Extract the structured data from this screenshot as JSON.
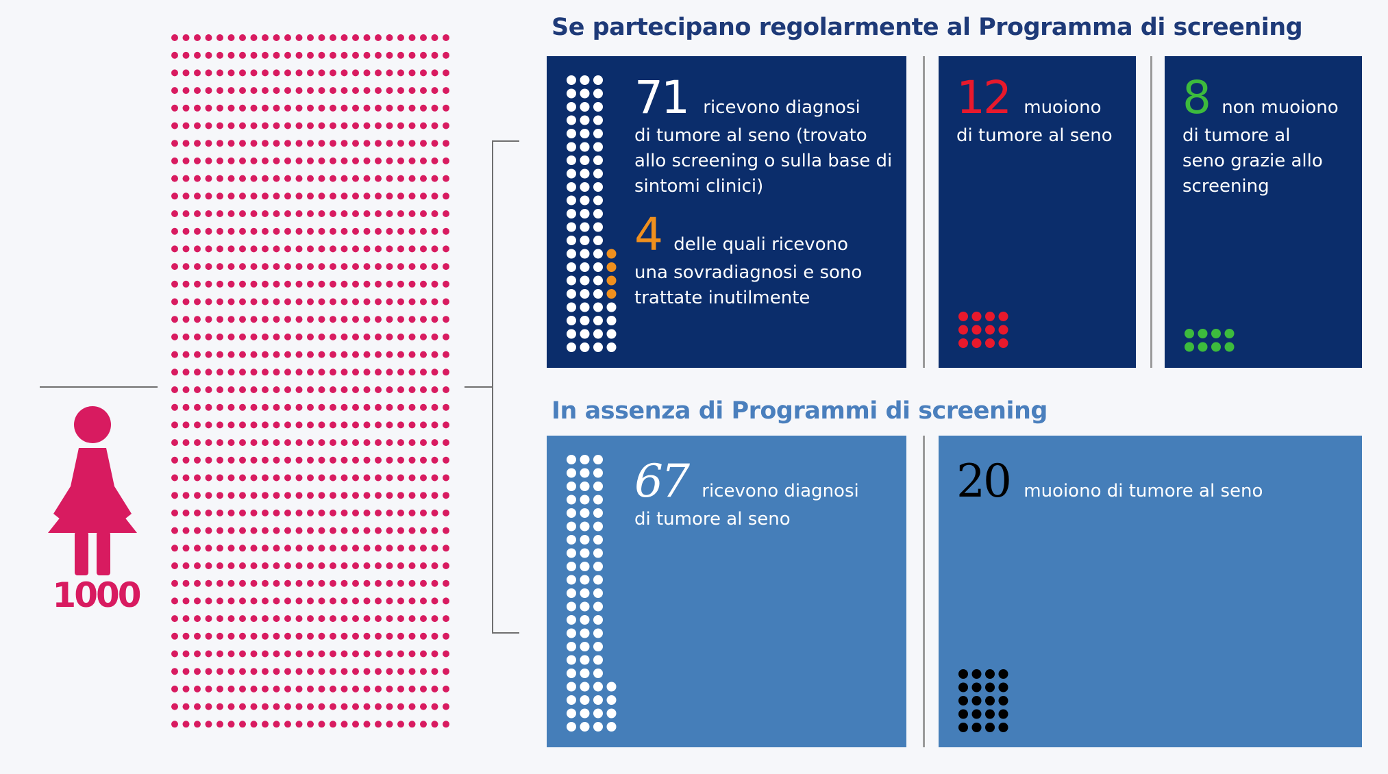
{
  "population": {
    "count_label": "1000",
    "count": 1000,
    "grid_columns": 40,
    "grid_rows": 25,
    "color": "#d81b60",
    "icon": "woman-icon"
  },
  "screening_section": {
    "title": "Se partecipano regolarmente al Programma di screening",
    "diagnosed": {
      "number": "71",
      "count": 71,
      "text_line1": "ricevono diagnosi",
      "text_rest": "di tumore al seno (trovato allo screening o sulla base di sintomi clinici)",
      "overdiagnosed": {
        "number": "4",
        "count": 4,
        "text_line1": "delle quali ricevono",
        "text_rest": "una sovradiagnosi e sono trattate inutilmente",
        "color": "#f0901e"
      }
    },
    "deaths": {
      "number": "12",
      "count": 12,
      "text_line1": "muoiono",
      "text_rest": "di tumore al seno",
      "color": "#e8192c"
    },
    "saved": {
      "number": "8",
      "count": 8,
      "text_line1": "non muoiono",
      "text_rest": "di tumore al seno grazie allo screening",
      "color": "#3dbb3d"
    }
  },
  "no_screening_section": {
    "title": "In assenza di Programmi di screening",
    "diagnosed": {
      "number": "67",
      "count": 67,
      "text_line1": "ricevono diagnosi",
      "text_rest": "di tumore al seno"
    },
    "deaths": {
      "number": "20",
      "count": 20,
      "text_line1": "muoiono di tumore al seno",
      "color": "#000000"
    }
  },
  "colors": {
    "dark_panel": "#0b2d6b",
    "light_panel": "#457eb9",
    "title_dark": "#1e3a78",
    "title_light": "#4a7fbd",
    "white_dot": "#ffffff"
  }
}
